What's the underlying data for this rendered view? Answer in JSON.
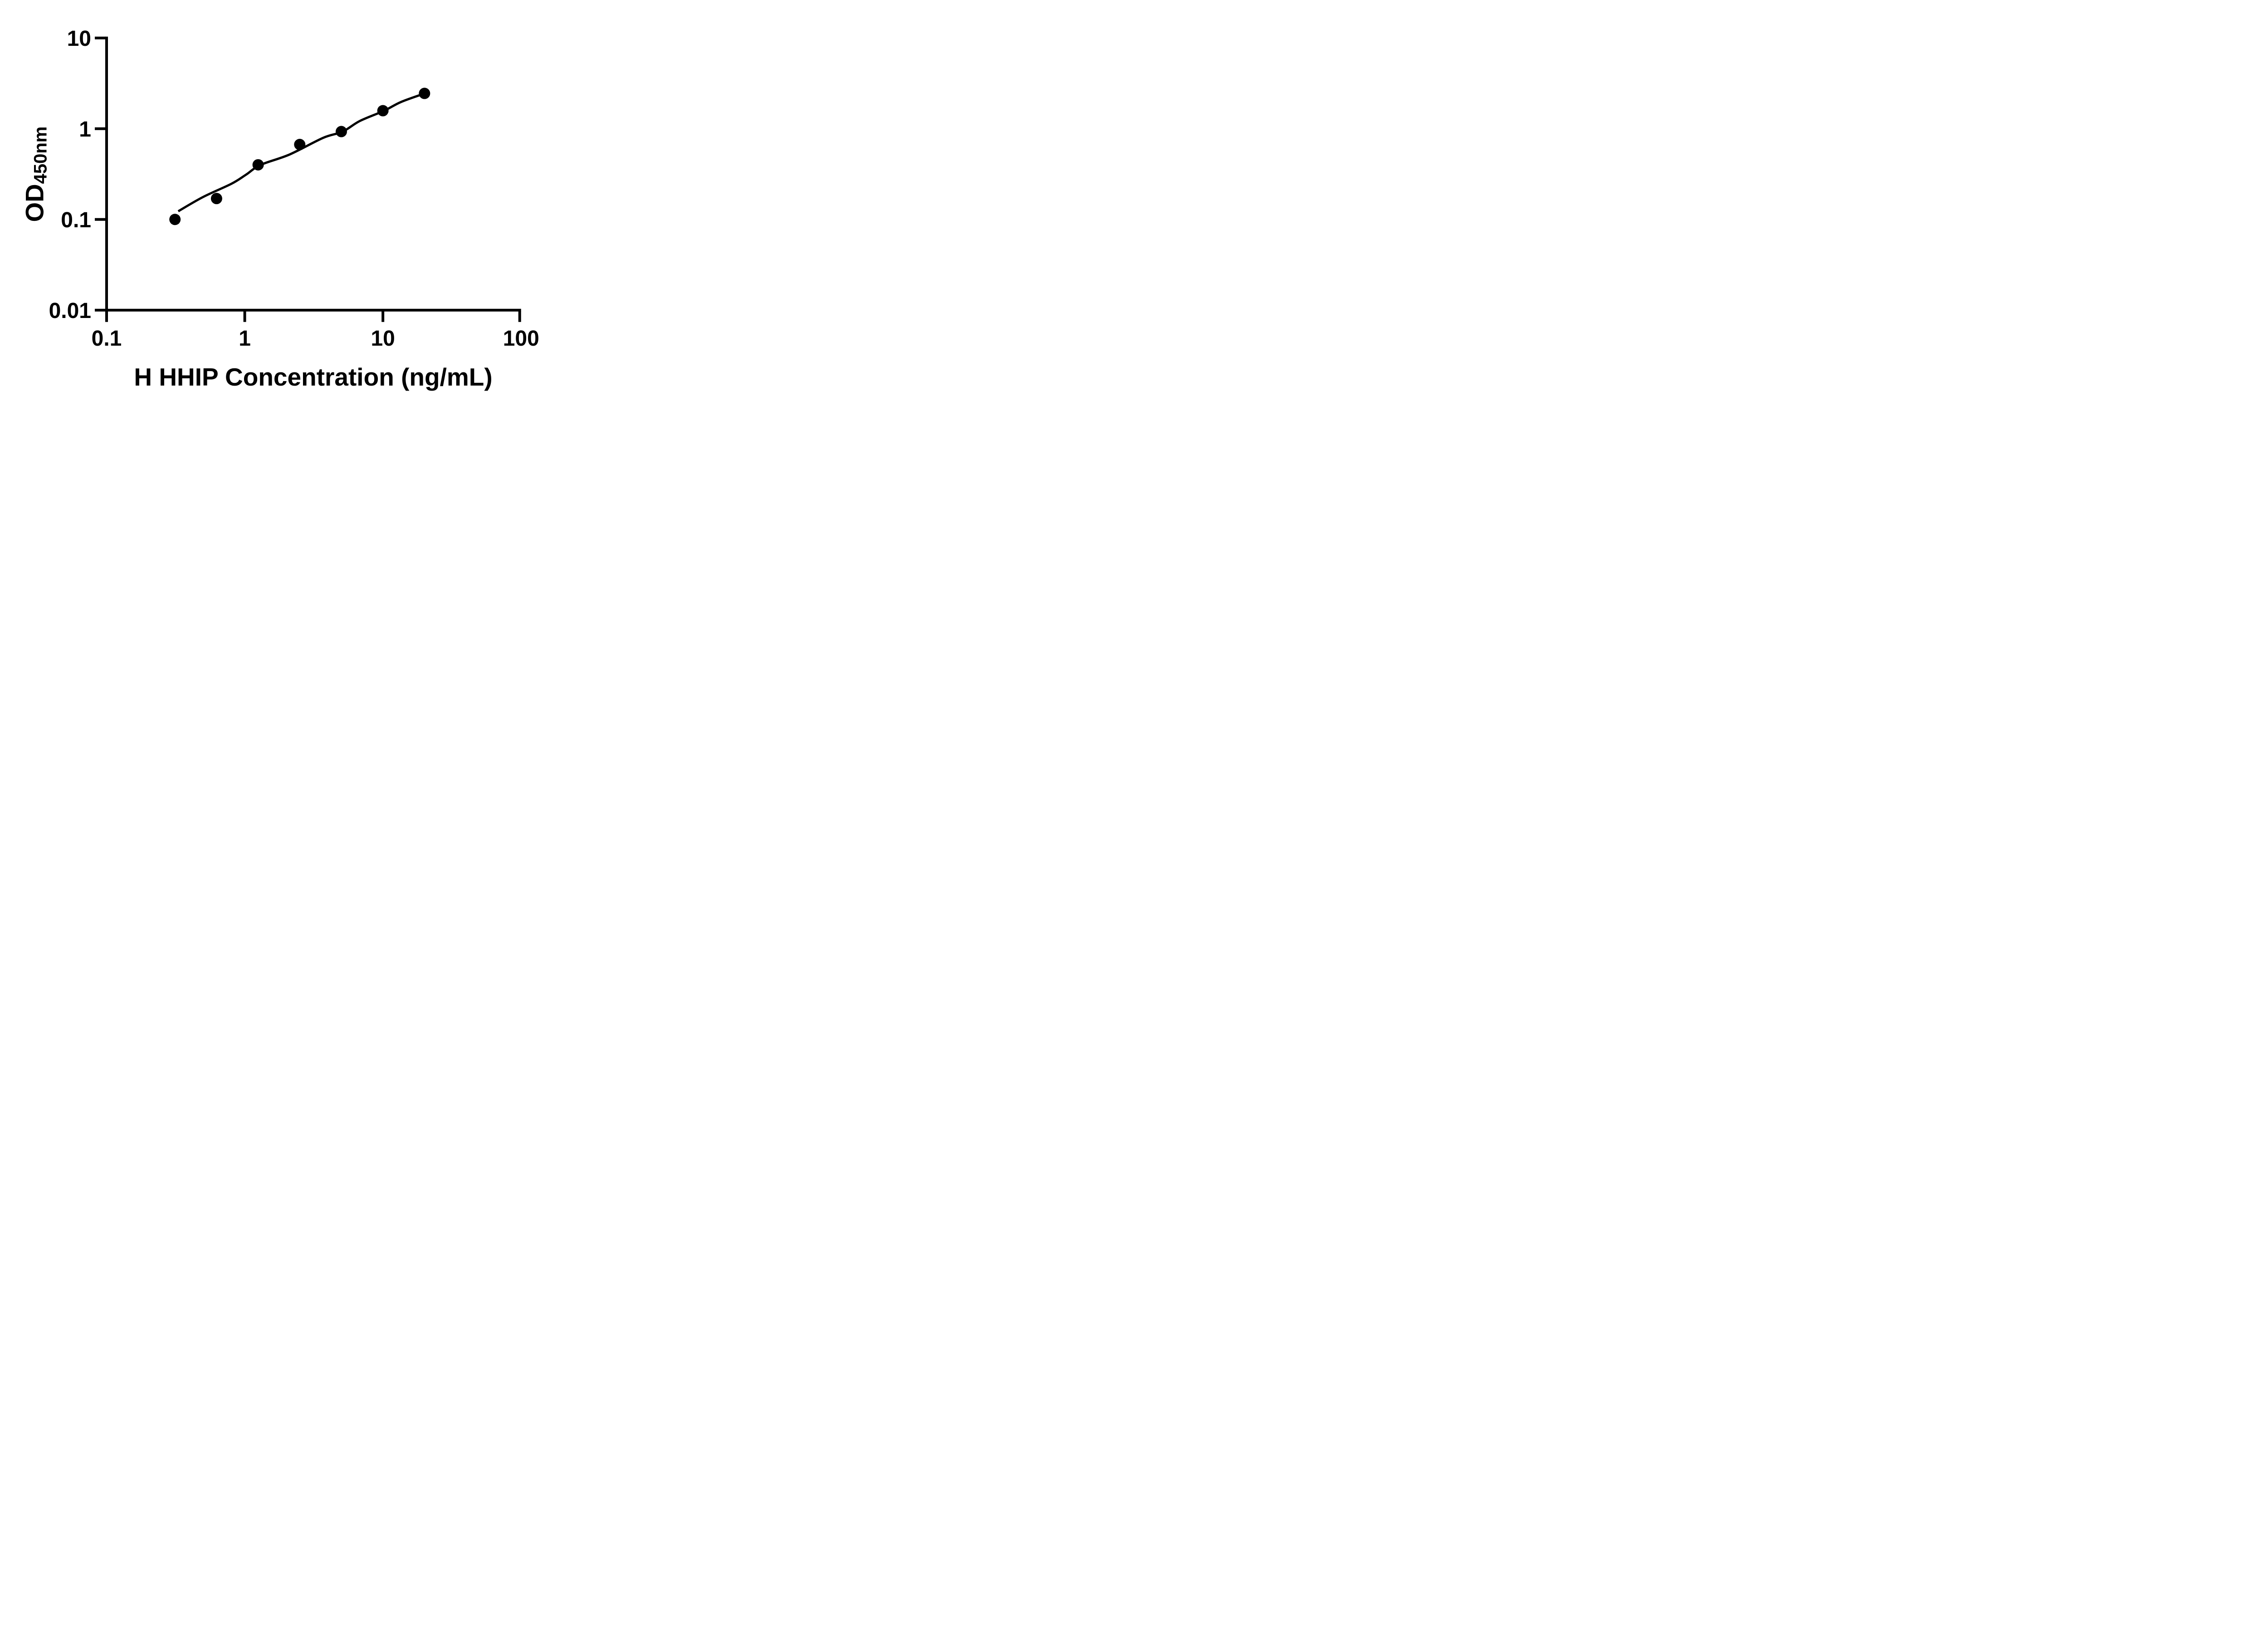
{
  "figure": {
    "background": "#ffffff",
    "colors": {
      "axis": "#000000",
      "marker": "#000000",
      "fit_line": "#000000",
      "text": "#000000"
    }
  },
  "chart_data": {
    "type": "scatter",
    "title": "",
    "xlabel": "H HHIP Concentration (ng/mL)",
    "ylabel": "OD450nm",
    "ylabel_main": "OD",
    "ylabel_sub": "450nm",
    "x_scale": "log",
    "y_scale": "log",
    "xlim": [
      0.1,
      100
    ],
    "ylim": [
      0.01,
      10
    ],
    "grid": false,
    "legend": "none",
    "x_tick_values": [
      0.1,
      1,
      10,
      100
    ],
    "x_tick_labels": [
      "0.1",
      "1",
      "10",
      "100"
    ],
    "y_tick_values": [
      10,
      1,
      0.1,
      0.01
    ],
    "y_tick_labels": [
      "10",
      "1",
      "0.1",
      "0.01"
    ],
    "series": [
      {
        "name": "standard-points",
        "type": "scatter",
        "marker": "circle",
        "color": "#000000",
        "x": [
          0.3125,
          0.625,
          1.25,
          2.5,
          5,
          10,
          20
        ],
        "y": [
          0.1,
          0.17,
          0.4,
          0.67,
          0.93,
          1.58,
          2.45
        ]
      },
      {
        "name": "fit-line",
        "type": "line",
        "color": "#000000",
        "x": [
          0.33,
          0.5,
          0.8,
          1.02,
          1.3,
          2.1,
          3.7,
          5.1,
          6.8,
          10.2,
          13.5,
          20.1
        ],
        "y": [
          0.123,
          0.177,
          0.247,
          0.311,
          0.399,
          0.518,
          0.794,
          0.927,
          1.216,
          1.578,
          1.968,
          2.449
        ]
      }
    ]
  }
}
